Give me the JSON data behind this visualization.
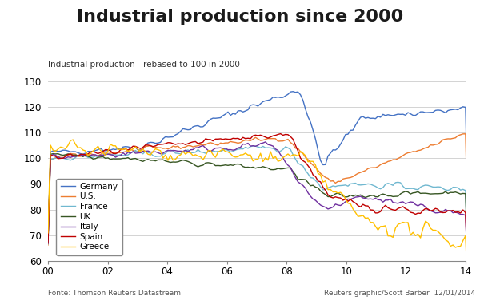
{
  "title": "Industrial production since 2000",
  "subtitle": "Industrial production - rebased to 100 in 2000",
  "xlim": [
    2000,
    2014
  ],
  "ylim": [
    60,
    130
  ],
  "yticks": [
    60,
    70,
    80,
    90,
    100,
    110,
    120,
    130
  ],
  "xtick_labels": [
    "00",
    "02",
    "04",
    "06",
    "08",
    "10",
    "12",
    "14"
  ],
  "xtick_positions": [
    2000,
    2002,
    2004,
    2006,
    2008,
    2010,
    2012,
    2014
  ],
  "footer_left": "Fonte: Thomson Reuters Datastream",
  "footer_right": "Reuters graphic/Scott Barber  12/01/2014",
  "legend_labels": [
    "Germany",
    "U.S.",
    "France",
    "UK",
    "Italy",
    "Spain",
    "Greece"
  ],
  "line_colors": {
    "Germany": "#4472C4",
    "U.S.": "#ED7D31",
    "France": "#70B8D0",
    "UK": "#375623",
    "Italy": "#7030A0",
    "Spain": "#C00000",
    "Greece": "#FFC000"
  },
  "background_color": "#FFFFFF",
  "grid_color": "#CCCCCC"
}
